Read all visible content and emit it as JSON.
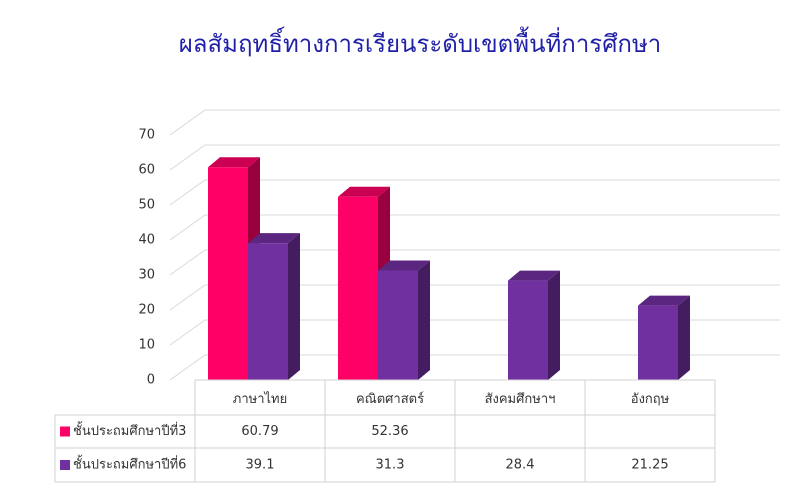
{
  "chart_data": {
    "type": "bar3d",
    "title": "ผลสัมฤทธิ์ทางการเรียนระดับเขตพื้นที่การศึกษา",
    "categories": [
      "ภาษาไทย",
      "คณิตศาสตร์",
      "สังคมศึกษาฯ",
      "อังกฤษ"
    ],
    "series": [
      {
        "name": "ชั้นประถมศึกษาปีที่3",
        "color": "#ff0066",
        "values": [
          60.79,
          52.36,
          null,
          null
        ]
      },
      {
        "name": "ชั้นประถมศึกษาปีที่6",
        "color": "#7030a0",
        "values": [
          39.1,
          31.3,
          28.4,
          21.25
        ]
      }
    ],
    "ylim": [
      0,
      70
    ],
    "yticks": [
      0,
      10,
      20,
      30,
      40,
      50,
      60,
      70
    ],
    "grid": true,
    "data_table": true
  }
}
